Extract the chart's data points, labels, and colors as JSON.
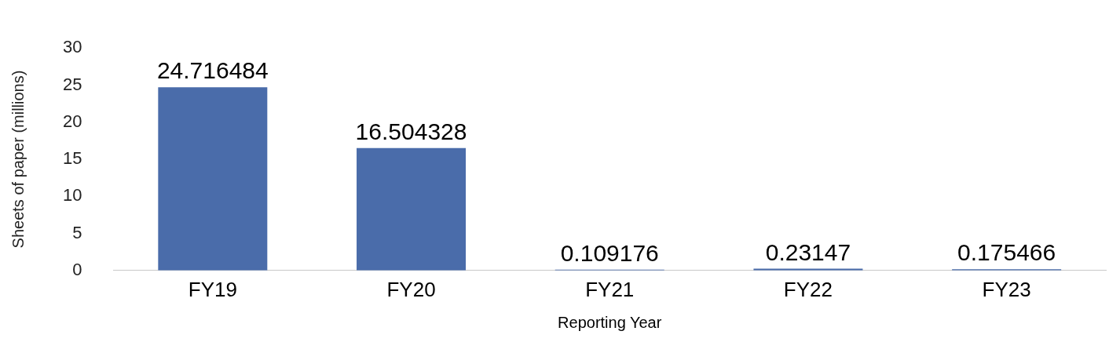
{
  "chart_data": {
    "type": "bar",
    "xlabel": "Reporting Year",
    "ylabel": "Sheets of paper (millions)",
    "categories": [
      "FY19",
      "FY20",
      "FY21",
      "FY22",
      "FY23"
    ],
    "values": [
      24.716484,
      16.504328,
      0.109176,
      0.23147,
      0.175466
    ],
    "color": "#4a6caa",
    "ylim": [
      0,
      30
    ],
    "yticks": [
      0,
      5,
      10,
      15,
      20,
      25,
      30
    ],
    "grid": false,
    "legend": false,
    "data_labels": true
  }
}
